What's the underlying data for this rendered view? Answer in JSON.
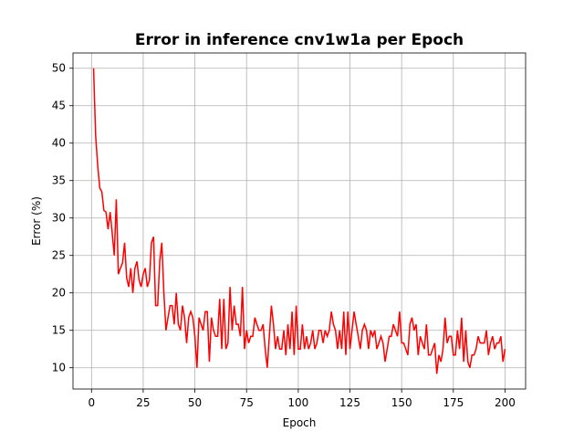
{
  "chart_data": {
    "type": "line",
    "title": "Error in inference cnv1w1a per Epoch",
    "x_label": "Epoch",
    "y_label": "Error (%)",
    "x": [
      1,
      2,
      3,
      4,
      5,
      6,
      7,
      8,
      9,
      10,
      11,
      12,
      13,
      14,
      15,
      16,
      17,
      18,
      19,
      20,
      21,
      22,
      23,
      24,
      25,
      26,
      27,
      28,
      29,
      30,
      31,
      32,
      33,
      34,
      35,
      36,
      37,
      38,
      39,
      40,
      41,
      42,
      43,
      44,
      45,
      46,
      47,
      48,
      49,
      50,
      51,
      52,
      53,
      54,
      55,
      56,
      57,
      58,
      59,
      60,
      61,
      62,
      63,
      64,
      65,
      66,
      67,
      68,
      69,
      70,
      71,
      72,
      73,
      74,
      75,
      76,
      77,
      78,
      79,
      80,
      81,
      82,
      83,
      84,
      85,
      86,
      87,
      88,
      89,
      90,
      91,
      92,
      93,
      94,
      95,
      96,
      97,
      98,
      99,
      100,
      101,
      102,
      103,
      104,
      105,
      106,
      107,
      108,
      109,
      110,
      111,
      112,
      113,
      114,
      115,
      116,
      117,
      118,
      119,
      120,
      121,
      122,
      123,
      124,
      125,
      126,
      127,
      128,
      129,
      130,
      131,
      132,
      133,
      134,
      135,
      136,
      137,
      138,
      139,
      140,
      141,
      142,
      143,
      144,
      145,
      146,
      147,
      148,
      149,
      150,
      151,
      152,
      153,
      154,
      155,
      156,
      157,
      158,
      159,
      160,
      161,
      162,
      163,
      164,
      165,
      166,
      167,
      168,
      169,
      170,
      171,
      172,
      173,
      174,
      175,
      176,
      177,
      178,
      179,
      180,
      181,
      182,
      183,
      184,
      185,
      186,
      187,
      188,
      189,
      190,
      191,
      192,
      193,
      194,
      195,
      196,
      197,
      198,
      199,
      200
    ],
    "series": [
      {
        "name": "Error",
        "color": "#ff0000",
        "values": [
          50,
          41,
          37,
          34,
          33.5,
          31,
          30.8,
          28.5,
          30.8,
          28,
          25,
          32.5,
          22.5,
          23.3,
          24,
          26.7,
          22,
          20.8,
          23.3,
          20,
          23.3,
          24.2,
          21.7,
          20.8,
          22.5,
          23.3,
          20.8,
          21.7,
          26.7,
          27.5,
          18.3,
          18.3,
          24.2,
          26.7,
          20,
          15,
          16.7,
          18.3,
          18.3,
          15.8,
          20,
          15.8,
          15,
          18.3,
          16.7,
          13.3,
          16.7,
          17.5,
          16.7,
          14.2,
          10,
          16.7,
          15.8,
          15,
          17.5,
          17.5,
          10.8,
          16.7,
          15,
          14.2,
          14.2,
          19.2,
          12.5,
          19.2,
          12.5,
          13.3,
          20.8,
          15,
          18.3,
          15.8,
          15.8,
          14.2,
          20.8,
          12.5,
          15,
          13.3,
          14.2,
          14.2,
          16.7,
          15.8,
          15,
          15,
          15.8,
          12.5,
          10,
          14.2,
          18.3,
          15.8,
          12.5,
          14.2,
          12.5,
          12.5,
          15,
          11.7,
          15.8,
          12.5,
          17.5,
          11.7,
          18.3,
          12.5,
          12.5,
          15.8,
          12.5,
          14.2,
          12.5,
          13.3,
          15,
          12.5,
          13.3,
          15,
          15,
          13.3,
          15,
          14.2,
          15,
          17.5,
          15.8,
          15,
          12.5,
          15,
          12.5,
          17.5,
          11.7,
          17.5,
          12.5,
          15,
          17.5,
          15.8,
          14.2,
          12.5,
          15,
          15.8,
          15,
          12.5,
          15,
          14.2,
          15,
          12.5,
          13.3,
          14.2,
          13.3,
          10.8,
          12.5,
          14.2,
          14.2,
          15.8,
          15,
          14.2,
          17.5,
          13.3,
          13.3,
          12.5,
          11.7,
          15.8,
          16.7,
          15,
          15.8,
          11.7,
          14.2,
          13.3,
          12.5,
          15.8,
          11.7,
          11.7,
          12.5,
          13.3,
          9.2,
          11.7,
          10.8,
          12.5,
          16.7,
          13.3,
          14.2,
          14.2,
          11.7,
          11.7,
          15,
          12.5,
          16.7,
          10.8,
          15,
          10.8,
          10,
          11.7,
          11.7,
          12.5,
          14.2,
          13.3,
          13.3,
          13.3,
          15,
          11.7,
          13.3,
          14.2,
          12.5,
          13.3,
          13.3,
          14.2,
          10.8,
          12.5
        ]
      }
    ],
    "xlim": [
      -8.95,
      209.95
    ],
    "ylim": [
      7.16,
      52.04
    ],
    "xticks": [
      0,
      25,
      50,
      75,
      100,
      125,
      150,
      175,
      200
    ],
    "yticks": [
      10,
      15,
      20,
      25,
      30,
      35,
      40,
      45,
      50
    ],
    "grid": true
  }
}
